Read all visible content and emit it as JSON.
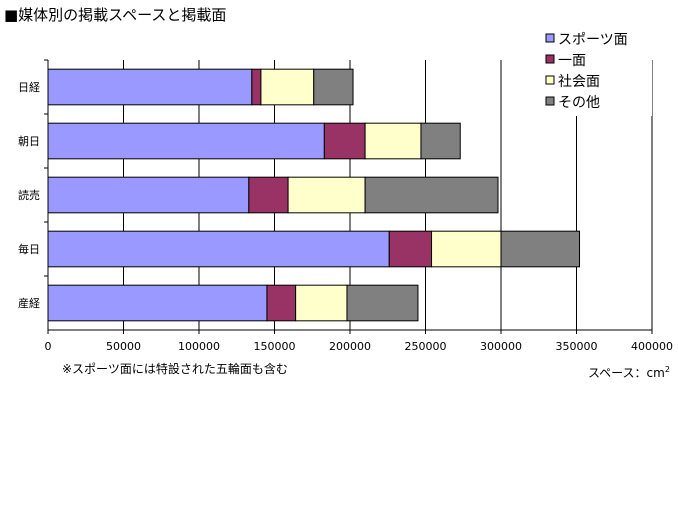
{
  "chart_data": {
    "type": "bar",
    "orientation": "horizontal",
    "stacked": true,
    "title": "■媒体別の掲載スペースと掲載面",
    "categories": [
      "日経",
      "朝日",
      "読売",
      "毎日",
      "産経"
    ],
    "series": [
      {
        "name": "スポーツ面",
        "color": "#9999ff",
        "values": [
          135000,
          183000,
          133000,
          226000,
          145000
        ]
      },
      {
        "name": "一面",
        "color": "#993366",
        "values": [
          6000,
          27000,
          26000,
          28000,
          19000
        ]
      },
      {
        "name": "社会面",
        "color": "#ffffcc",
        "values": [
          35000,
          37000,
          51000,
          46000,
          34000
        ]
      },
      {
        "name": "その他",
        "color": "#808080",
        "values": [
          26000,
          26000,
          88000,
          52000,
          47000
        ]
      }
    ],
    "xlim": [
      0,
      400000
    ],
    "xticks": [
      "0",
      "50000",
      "100000",
      "150000",
      "200000",
      "250000",
      "300000",
      "350000",
      "400000"
    ],
    "grid": true,
    "legend_position": "top-right",
    "note": "※スポーツ面には特設された五輪面も含む",
    "unit_label": "スペース：cm",
    "unit_sup": "2"
  }
}
